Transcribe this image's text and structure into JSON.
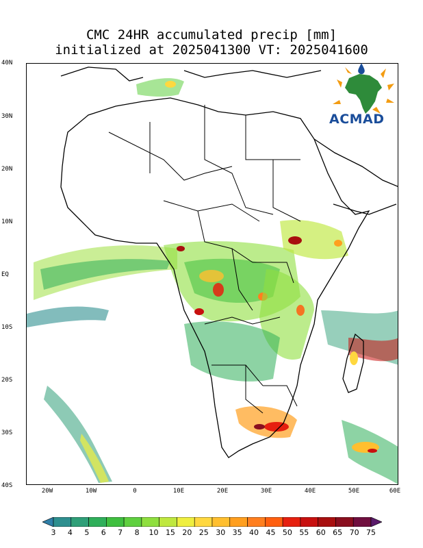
{
  "title_line1": "CMC 24HR accumulated precip [mm]",
  "title_line2": "initialized at 2025041300 VT: 2025041600",
  "logo_text": "ACMAD",
  "lat_labels": [
    "40N",
    "30N",
    "20N",
    "10N",
    "EQ",
    "10S",
    "20S",
    "30S",
    "40S"
  ],
  "lon_labels": [
    "20W",
    "10W",
    "0",
    "10E",
    "20E",
    "30E",
    "40E",
    "50E",
    "60E"
  ],
  "colorbar": {
    "labels": [
      "3",
      "4",
      "5",
      "6",
      "7",
      "8",
      "10",
      "15",
      "20",
      "25",
      "30",
      "35",
      "40",
      "45",
      "50",
      "55",
      "60",
      "65",
      "70",
      "75"
    ],
    "colors": [
      "#2f7fa8",
      "#2e8f8f",
      "#2f9f78",
      "#2faf5a",
      "#3fbf3f",
      "#5fd03f",
      "#8fdf3f",
      "#bfe83f",
      "#efef3f",
      "#ffd83f",
      "#ffbf2f",
      "#ff9f1f",
      "#ff7f1f",
      "#ff5f0f",
      "#e6200f",
      "#c8100f",
      "#a80f0f",
      "#8a0f1f",
      "#700f3f",
      "#5a1a6a"
    ]
  },
  "map": {
    "lon_range": [
      -25,
      60
    ],
    "lat_range": [
      -40,
      40
    ],
    "grid": false,
    "colorbar_placement": "bottom"
  }
}
